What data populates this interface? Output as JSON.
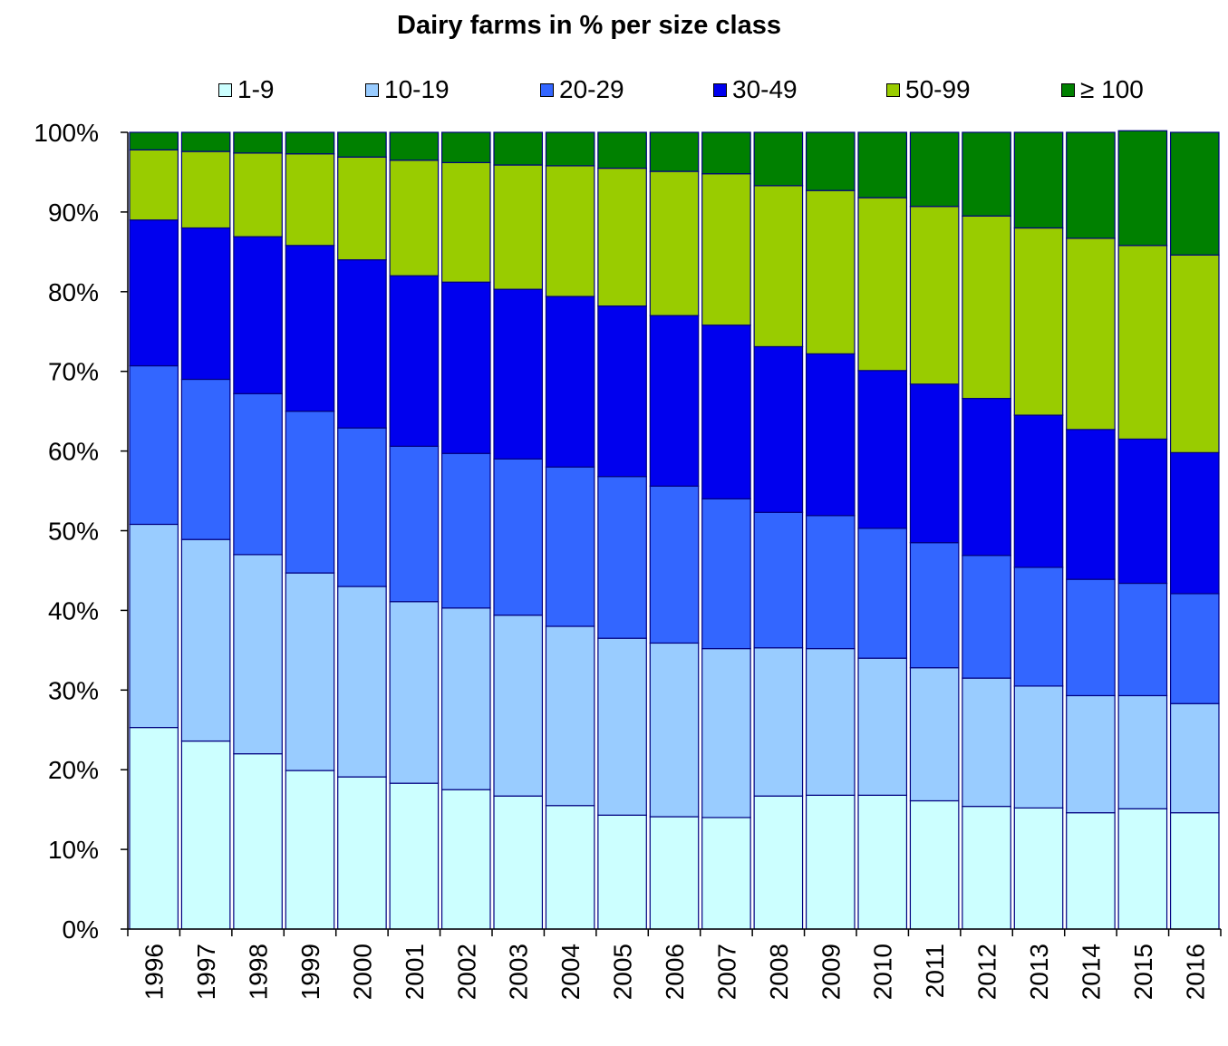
{
  "chart_data": {
    "type": "bar",
    "stacked": true,
    "title": "Dairy farms in % per size class",
    "xlabel": "",
    "ylabel": "",
    "ylim": [
      0,
      100
    ],
    "y_ticks": [
      "0%",
      "10%",
      "20%",
      "30%",
      "40%",
      "50%",
      "60%",
      "70%",
      "80%",
      "90%",
      "100%"
    ],
    "legend_position": "top",
    "categories": [
      "1996",
      "1997",
      "1998",
      "1999",
      "2000",
      "2001",
      "2002",
      "2003",
      "2004",
      "2005",
      "2006",
      "2007",
      "2008",
      "2009",
      "2010",
      "2011",
      "2012",
      "2013",
      "2014",
      "2015",
      "2016"
    ],
    "series": [
      {
        "name": "1-9",
        "color": "#CCFFFF",
        "values": [
          25.3,
          23.6,
          22.0,
          19.9,
          19.1,
          18.3,
          17.5,
          16.7,
          15.5,
          14.3,
          14.1,
          14.0,
          16.7,
          16.8,
          16.8,
          16.1,
          15.4,
          15.2,
          14.6,
          15.1,
          14.6
        ]
      },
      {
        "name": "10-19",
        "color": "#99CCFF",
        "values": [
          25.5,
          25.3,
          25.0,
          24.8,
          23.9,
          22.8,
          22.8,
          22.7,
          22.5,
          22.2,
          21.8,
          21.2,
          18.6,
          18.4,
          17.2,
          16.7,
          16.1,
          15.3,
          14.7,
          14.2,
          13.7
        ]
      },
      {
        "name": "20-29",
        "color": "#3366FF",
        "values": [
          19.9,
          20.1,
          20.2,
          20.3,
          19.9,
          19.5,
          19.4,
          19.6,
          20.0,
          20.3,
          19.7,
          18.8,
          17.0,
          16.7,
          16.3,
          15.7,
          15.4,
          14.9,
          14.6,
          14.1,
          13.8
        ]
      },
      {
        "name": "30-49",
        "color": "#0000EE",
        "values": [
          18.3,
          19.0,
          19.7,
          20.8,
          21.1,
          21.4,
          21.5,
          21.3,
          21.4,
          21.4,
          21.4,
          21.8,
          20.8,
          20.3,
          19.8,
          19.9,
          19.7,
          19.1,
          18.8,
          18.1,
          17.7
        ]
      },
      {
        "name": "50-99",
        "color": "#99CC00",
        "values": [
          8.8,
          9.6,
          10.5,
          11.5,
          12.9,
          14.5,
          15.0,
          15.6,
          16.4,
          17.3,
          18.1,
          19.0,
          20.2,
          20.5,
          21.7,
          22.3,
          22.9,
          23.5,
          24.0,
          24.3,
          24.8
        ]
      },
      {
        "name": "≥ 100",
        "color": "#008000",
        "values": [
          2.2,
          2.4,
          2.6,
          2.7,
          3.1,
          3.5,
          3.8,
          4.1,
          4.2,
          4.5,
          4.9,
          5.2,
          6.7,
          7.3,
          8.2,
          9.3,
          10.5,
          12.0,
          13.3,
          14.4,
          15.4
        ]
      }
    ]
  }
}
